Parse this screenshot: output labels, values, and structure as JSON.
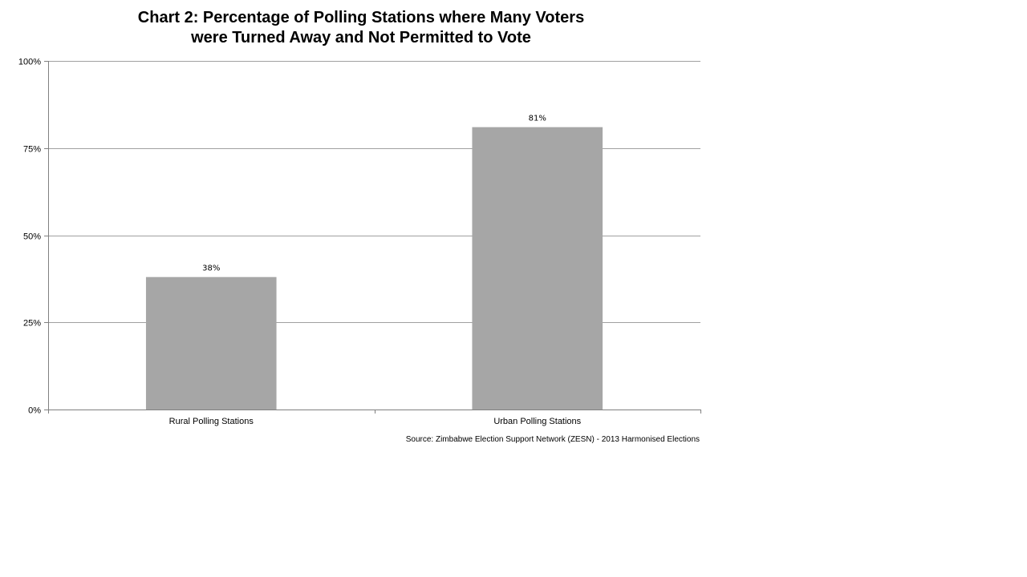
{
  "chart_data": {
    "type": "bar",
    "title_lines": [
      "Chart 2: Percentage of Polling Stations where Many Voters",
      "were Turned Away and Not Permitted to Vote"
    ],
    "categories": [
      "Rural Polling Stations",
      "Urban Polling Stations"
    ],
    "values": [
      38,
      81
    ],
    "data_labels": [
      "38%",
      "81%"
    ],
    "ylim": [
      0,
      100
    ],
    "yticks": [
      0,
      25,
      50,
      75,
      100
    ],
    "ytick_labels": [
      "0%",
      "25%",
      "50%",
      "75%",
      "100%"
    ],
    "xlabel": "",
    "ylabel": "",
    "grid": true,
    "legend": "none",
    "bar_color": "#a6a6a6",
    "grid_color": "#a0a0a0",
    "source": "Source: Zimbabwe Election Support Network (ZESN) - 2013 Harmonised Elections"
  }
}
